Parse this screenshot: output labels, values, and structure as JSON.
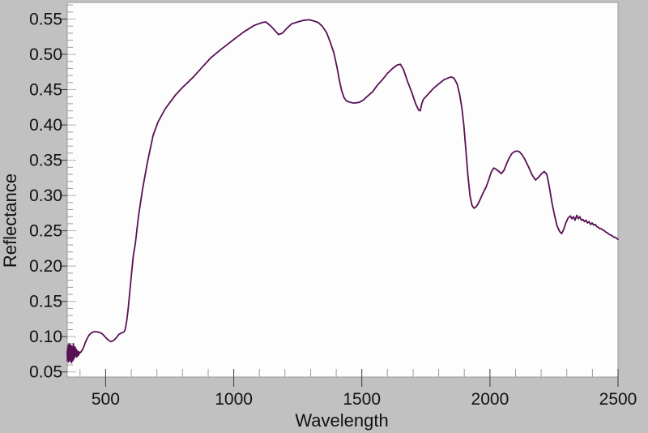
{
  "chart_data": {
    "type": "line",
    "title": "",
    "xlabel": "Wavelength",
    "ylabel": "Reflectance",
    "xlim": [
      350,
      2500
    ],
    "ylim": [
      0.043,
      0.574
    ],
    "grid": false,
    "legend": false,
    "background_color": "#c1c1c1",
    "plot_area_color": "#fdfdfd",
    "line_color": "#581055",
    "x_major_ticks": [
      {
        "value": 500,
        "label": "500"
      },
      {
        "value": 1000,
        "label": "1000"
      },
      {
        "value": 1500,
        "label": "1500"
      },
      {
        "value": 2000,
        "label": "2000"
      },
      {
        "value": 2500,
        "label": "2500"
      }
    ],
    "x_minor_step": 100,
    "y_major_ticks": [
      {
        "value": 0.05,
        "label": "0.05"
      },
      {
        "value": 0.1,
        "label": "0.10"
      },
      {
        "value": 0.15,
        "label": "0.15"
      },
      {
        "value": 0.2,
        "label": "0.20"
      },
      {
        "value": 0.25,
        "label": "0.25"
      },
      {
        "value": 0.3,
        "label": "0.30"
      },
      {
        "value": 0.35,
        "label": "0.35"
      },
      {
        "value": 0.4,
        "label": "0.40"
      },
      {
        "value": 0.45,
        "label": "0.45"
      },
      {
        "value": 0.5,
        "label": "0.50"
      },
      {
        "value": 0.55,
        "label": "0.55"
      }
    ],
    "y_minor_step": 0.01,
    "series": [
      {
        "name": "reflectance-spectrum",
        "points": [
          [
            350,
            0.079
          ],
          [
            351,
            0.066
          ],
          [
            352,
            0.084
          ],
          [
            353,
            0.07
          ],
          [
            354,
            0.088
          ],
          [
            355,
            0.064
          ],
          [
            356,
            0.086
          ],
          [
            357,
            0.071
          ],
          [
            358,
            0.09
          ],
          [
            359,
            0.067
          ],
          [
            360,
            0.083
          ],
          [
            361,
            0.069
          ],
          [
            362,
            0.088
          ],
          [
            363,
            0.065
          ],
          [
            364,
            0.081
          ],
          [
            365,
            0.07
          ],
          [
            366,
            0.087
          ],
          [
            367,
            0.063
          ],
          [
            368,
            0.085
          ],
          [
            369,
            0.072
          ],
          [
            370,
            0.068
          ],
          [
            371,
            0.086
          ],
          [
            372,
            0.066
          ],
          [
            373,
            0.08
          ],
          [
            374,
            0.09
          ],
          [
            375,
            0.068
          ],
          [
            376,
            0.078
          ],
          [
            377,
            0.086
          ],
          [
            378,
            0.07
          ],
          [
            379,
            0.082
          ],
          [
            380,
            0.072
          ],
          [
            381,
            0.085
          ],
          [
            383,
            0.073
          ],
          [
            385,
            0.082
          ],
          [
            387,
            0.071
          ],
          [
            389,
            0.08
          ],
          [
            391,
            0.073
          ],
          [
            393,
            0.079
          ],
          [
            395,
            0.074
          ],
          [
            397,
            0.078
          ],
          [
            400,
            0.077
          ],
          [
            405,
            0.079
          ],
          [
            410,
            0.082
          ],
          [
            415,
            0.086
          ],
          [
            420,
            0.091
          ],
          [
            425,
            0.095
          ],
          [
            430,
            0.099
          ],
          [
            435,
            0.102
          ],
          [
            440,
            0.104
          ],
          [
            447,
            0.106
          ],
          [
            455,
            0.107
          ],
          [
            465,
            0.107
          ],
          [
            475,
            0.106
          ],
          [
            483,
            0.105
          ],
          [
            492,
            0.102
          ],
          [
            500,
            0.099
          ],
          [
            508,
            0.096
          ],
          [
            515,
            0.094
          ],
          [
            521,
            0.093
          ],
          [
            528,
            0.094
          ],
          [
            535,
            0.096
          ],
          [
            543,
            0.099
          ],
          [
            551,
            0.103
          ],
          [
            560,
            0.105
          ],
          [
            567,
            0.106
          ],
          [
            572,
            0.107
          ],
          [
            576,
            0.11
          ],
          [
            582,
            0.122
          ],
          [
            588,
            0.14
          ],
          [
            594,
            0.163
          ],
          [
            600,
            0.186
          ],
          [
            608,
            0.215
          ],
          [
            616,
            0.232
          ],
          [
            628,
            0.27
          ],
          [
            644,
            0.309
          ],
          [
            663,
            0.347
          ],
          [
            685,
            0.385
          ],
          [
            704,
            0.404
          ],
          [
            733,
            0.423
          ],
          [
            774,
            0.443
          ],
          [
            800,
            0.453
          ],
          [
            840,
            0.467
          ],
          [
            880,
            0.483
          ],
          [
            910,
            0.495
          ],
          [
            950,
            0.507
          ],
          [
            1000,
            0.521
          ],
          [
            1040,
            0.532
          ],
          [
            1080,
            0.541
          ],
          [
            1110,
            0.545
          ],
          [
            1125,
            0.546
          ],
          [
            1145,
            0.54
          ],
          [
            1160,
            0.534
          ],
          [
            1175,
            0.528
          ],
          [
            1190,
            0.53
          ],
          [
            1205,
            0.536
          ],
          [
            1225,
            0.543
          ],
          [
            1250,
            0.546
          ],
          [
            1270,
            0.548
          ],
          [
            1295,
            0.549
          ],
          [
            1315,
            0.547
          ],
          [
            1330,
            0.545
          ],
          [
            1345,
            0.54
          ],
          [
            1362,
            0.531
          ],
          [
            1378,
            0.516
          ],
          [
            1391,
            0.502
          ],
          [
            1403,
            0.482
          ],
          [
            1412,
            0.464
          ],
          [
            1421,
            0.449
          ],
          [
            1430,
            0.439
          ],
          [
            1440,
            0.434
          ],
          [
            1455,
            0.432
          ],
          [
            1470,
            0.431
          ],
          [
            1490,
            0.432
          ],
          [
            1505,
            0.435
          ],
          [
            1520,
            0.44
          ],
          [
            1542,
            0.447
          ],
          [
            1560,
            0.456
          ],
          [
            1580,
            0.464
          ],
          [
            1600,
            0.473
          ],
          [
            1620,
            0.48
          ],
          [
            1638,
            0.485
          ],
          [
            1650,
            0.486
          ],
          [
            1662,
            0.479
          ],
          [
            1678,
            0.462
          ],
          [
            1694,
            0.447
          ],
          [
            1710,
            0.43
          ],
          [
            1722,
            0.421
          ],
          [
            1728,
            0.42
          ],
          [
            1734,
            0.43
          ],
          [
            1740,
            0.436
          ],
          [
            1750,
            0.44
          ],
          [
            1765,
            0.446
          ],
          [
            1780,
            0.452
          ],
          [
            1800,
            0.458
          ],
          [
            1820,
            0.464
          ],
          [
            1840,
            0.467
          ],
          [
            1850,
            0.468
          ],
          [
            1860,
            0.466
          ],
          [
            1872,
            0.458
          ],
          [
            1882,
            0.443
          ],
          [
            1890,
            0.425
          ],
          [
            1898,
            0.4
          ],
          [
            1906,
            0.365
          ],
          [
            1914,
            0.328
          ],
          [
            1922,
            0.3
          ],
          [
            1930,
            0.286
          ],
          [
            1938,
            0.282
          ],
          [
            1946,
            0.284
          ],
          [
            1955,
            0.289
          ],
          [
            1965,
            0.297
          ],
          [
            1975,
            0.305
          ],
          [
            1985,
            0.312
          ],
          [
            1995,
            0.322
          ],
          [
            2005,
            0.333
          ],
          [
            2015,
            0.339
          ],
          [
            2025,
            0.337
          ],
          [
            2035,
            0.334
          ],
          [
            2045,
            0.331
          ],
          [
            2055,
            0.336
          ],
          [
            2065,
            0.345
          ],
          [
            2075,
            0.353
          ],
          [
            2085,
            0.359
          ],
          [
            2095,
            0.362
          ],
          [
            2105,
            0.363
          ],
          [
            2115,
            0.362
          ],
          [
            2125,
            0.358
          ],
          [
            2135,
            0.352
          ],
          [
            2150,
            0.341
          ],
          [
            2165,
            0.329
          ],
          [
            2178,
            0.322
          ],
          [
            2190,
            0.326
          ],
          [
            2202,
            0.331
          ],
          [
            2212,
            0.334
          ],
          [
            2222,
            0.33
          ],
          [
            2232,
            0.312
          ],
          [
            2242,
            0.29
          ],
          [
            2252,
            0.272
          ],
          [
            2262,
            0.257
          ],
          [
            2272,
            0.249
          ],
          [
            2280,
            0.246
          ],
          [
            2288,
            0.252
          ],
          [
            2296,
            0.261
          ],
          [
            2305,
            0.268
          ],
          [
            2314,
            0.271
          ],
          [
            2320,
            0.267
          ],
          [
            2326,
            0.27
          ],
          [
            2332,
            0.265
          ],
          [
            2339,
            0.272
          ],
          [
            2345,
            0.267
          ],
          [
            2351,
            0.27
          ],
          [
            2357,
            0.265
          ],
          [
            2363,
            0.266
          ],
          [
            2369,
            0.263
          ],
          [
            2375,
            0.265
          ],
          [
            2381,
            0.261
          ],
          [
            2387,
            0.263
          ],
          [
            2393,
            0.259
          ],
          [
            2399,
            0.261
          ],
          [
            2405,
            0.258
          ],
          [
            2411,
            0.259
          ],
          [
            2417,
            0.256
          ],
          [
            2423,
            0.255
          ],
          [
            2429,
            0.253
          ],
          [
            2435,
            0.253
          ],
          [
            2441,
            0.251
          ],
          [
            2447,
            0.25
          ],
          [
            2453,
            0.248
          ],
          [
            2459,
            0.247
          ],
          [
            2465,
            0.245
          ],
          [
            2471,
            0.244
          ],
          [
            2477,
            0.243
          ],
          [
            2483,
            0.241
          ],
          [
            2489,
            0.241
          ],
          [
            2495,
            0.239
          ],
          [
            2500,
            0.238
          ]
        ]
      }
    ]
  }
}
